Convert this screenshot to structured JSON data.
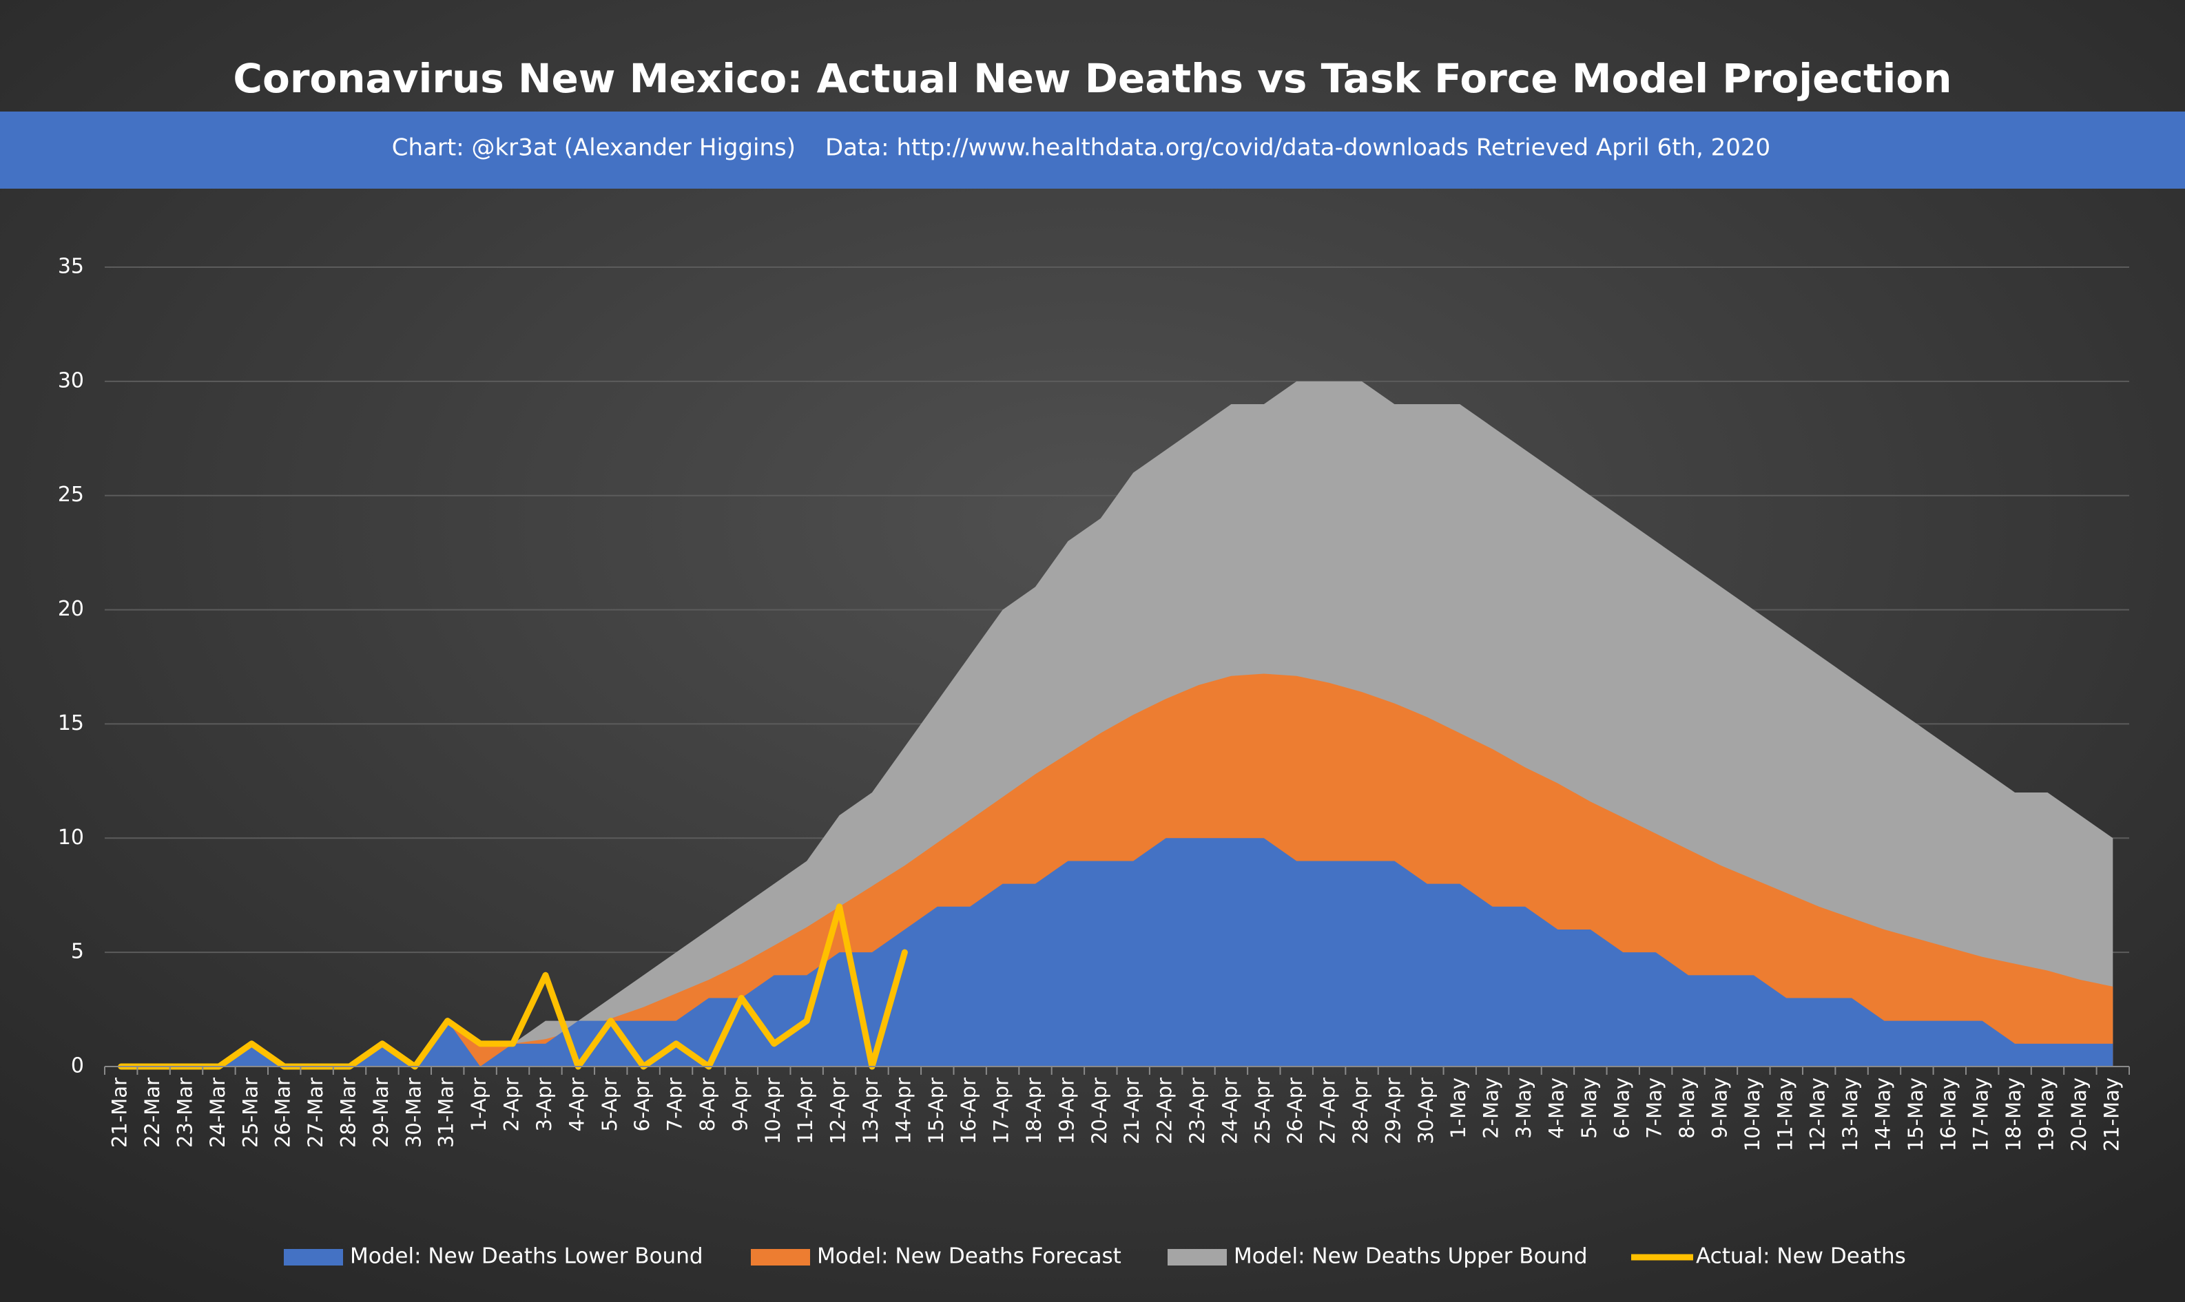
{
  "chart_data": {
    "type": "area",
    "title": "Coronavirus New Mexico: Actual New Deaths vs Task Force Model Projection",
    "credit": "Chart: @kr3at (Alexander Higgins)",
    "source": "Data: http://www.healthdata.org/covid/data-downloads Retrieved April 6th, 2020",
    "categories": [
      "21-Mar",
      "22-Mar",
      "23-Mar",
      "24-Mar",
      "25-Mar",
      "26-Mar",
      "27-Mar",
      "28-Mar",
      "29-Mar",
      "30-Mar",
      "31-Mar",
      "1-Apr",
      "2-Apr",
      "3-Apr",
      "4-Apr",
      "5-Apr",
      "6-Apr",
      "7-Apr",
      "8-Apr",
      "9-Apr",
      "10-Apr",
      "11-Apr",
      "12-Apr",
      "13-Apr",
      "14-Apr",
      "15-Apr",
      "16-Apr",
      "17-Apr",
      "18-Apr",
      "19-Apr",
      "20-Apr",
      "21-Apr",
      "22-Apr",
      "23-Apr",
      "24-Apr",
      "25-Apr",
      "26-Apr",
      "27-Apr",
      "28-Apr",
      "29-Apr",
      "30-Apr",
      "1-May",
      "2-May",
      "3-May",
      "4-May",
      "5-May",
      "6-May",
      "7-May",
      "8-May",
      "9-May",
      "10-May",
      "11-May",
      "12-May",
      "13-May",
      "14-May",
      "15-May",
      "16-May",
      "17-May",
      "18-May",
      "19-May",
      "20-May",
      "21-May"
    ],
    "series": [
      {
        "name": "Model: New Deaths Upper Bound",
        "color": "#a5a5a5",
        "kind": "area",
        "values": [
          0,
          0,
          0,
          0,
          1,
          0,
          0,
          0,
          1,
          0,
          2,
          1,
          1,
          2,
          2,
          3,
          4,
          5,
          6,
          7,
          8,
          9,
          11,
          12,
          14,
          16,
          18,
          20,
          21,
          23,
          24,
          26,
          27,
          28,
          29,
          29,
          30,
          30,
          30,
          29,
          29,
          29,
          28,
          27,
          26,
          25,
          24,
          23,
          22,
          21,
          20,
          19,
          18,
          17,
          16,
          15,
          14,
          13,
          12,
          12,
          11,
          10
        ]
      },
      {
        "name": "Model: New Deaths Forecast",
        "color": "#ed7d31",
        "kind": "area",
        "values": [
          0,
          0,
          0,
          0,
          1,
          0,
          0,
          0,
          1,
          0,
          2,
          1,
          1,
          1.2,
          1.6,
          2.1,
          2.6,
          3.2,
          3.8,
          4.5,
          5.3,
          6.1,
          7,
          7.9,
          8.8,
          9.8,
          10.8,
          11.8,
          12.8,
          13.7,
          14.6,
          15.4,
          16.1,
          16.7,
          17.1,
          17.2,
          17.1,
          16.8,
          16.4,
          15.9,
          15.3,
          14.6,
          13.9,
          13.1,
          12.4,
          11.6,
          10.9,
          10.2,
          9.5,
          8.8,
          8.2,
          7.6,
          7,
          6.5,
          6,
          5.6,
          5.2,
          4.8,
          4.5,
          4.2,
          3.8,
          3.5
        ]
      },
      {
        "name": "Model: New Deaths Lower Bound",
        "color": "#4472c4",
        "kind": "area",
        "values": [
          0,
          0,
          0,
          0,
          1,
          0,
          0,
          0,
          1,
          0,
          2,
          0,
          1,
          1,
          2,
          2,
          2,
          2,
          3,
          3,
          4,
          4,
          5,
          5,
          6,
          7,
          7,
          8,
          8,
          9,
          9,
          9,
          10,
          10,
          10,
          10,
          9,
          9,
          9,
          9,
          8,
          8,
          7,
          7,
          6,
          6,
          5,
          5,
          4,
          4,
          4,
          3,
          3,
          3,
          2,
          2,
          2,
          2,
          1,
          1,
          1,
          1
        ]
      },
      {
        "name": "Actual: New Deaths",
        "color": "#ffc000",
        "kind": "line",
        "values": [
          0,
          0,
          0,
          0,
          1,
          0,
          0,
          0,
          1,
          0,
          2,
          1,
          1,
          4,
          0,
          2,
          0,
          1,
          0,
          3,
          1,
          2,
          7,
          0,
          5,
          null,
          null,
          null,
          null,
          null,
          null,
          null,
          null,
          null,
          null,
          null,
          null,
          null,
          null,
          null,
          null,
          null,
          null,
          null,
          null,
          null,
          null,
          null,
          null,
          null,
          null,
          null,
          null,
          null,
          null,
          null,
          null,
          null,
          null,
          null,
          null,
          null
        ]
      }
    ],
    "legend_order": [
      2,
      1,
      0,
      3
    ],
    "ylim": [
      0,
      35
    ],
    "yticks": [
      0,
      5,
      10,
      15,
      20,
      25,
      30,
      35
    ],
    "grid": true,
    "legend": "bottom"
  }
}
